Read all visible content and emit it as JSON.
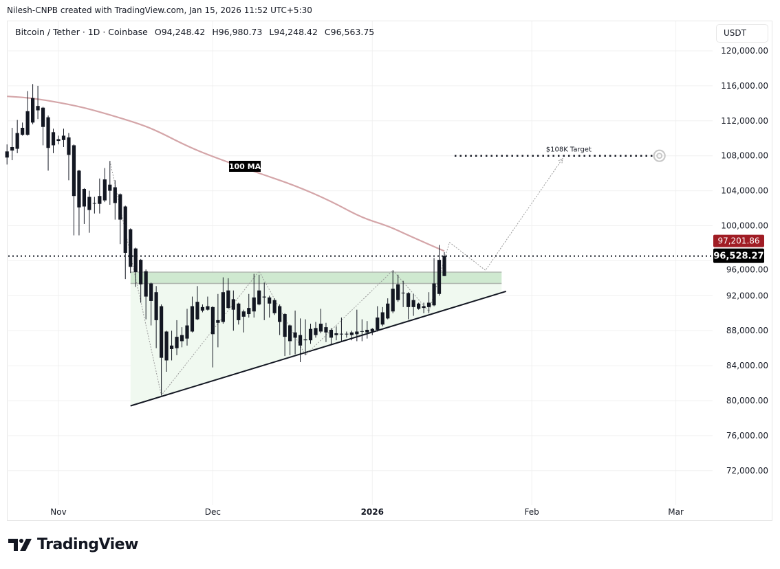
{
  "credit": "Nilesh-CNPB created with TradingView.com, Jan 15, 2026 11:52 UTC+5:30",
  "legend": {
    "symbol": "Bitcoin / Tether · 1D · Coinbase",
    "open": "O94,248.42",
    "high": "H96,980.73",
    "low": "L94,248.42",
    "close": "C96,563.75"
  },
  "currency_button": "USDT",
  "brand": "TradingView",
  "colors": {
    "candle": "#131722",
    "ma": "#d4a5a8",
    "zone": "#cfe9d0",
    "triangle": "#f0f9f0",
    "ma_label_bg": "#a01c24",
    "price_label_bg": "#000000"
  },
  "chart_data": {
    "type": "candlestick",
    "title": "",
    "price_ticks": [
      "120,000.00",
      "116,000.00",
      "112,000.00",
      "108,000.00",
      "104,000.00",
      "100,000.00",
      "96,000.00",
      "92,000.00",
      "88,000.00",
      "84,000.00",
      "80,000.00",
      "76,000.00",
      "72,000.00"
    ],
    "price_tick_values": [
      120000,
      116000,
      112000,
      108000,
      104000,
      100000,
      96000,
      92000,
      88000,
      84000,
      80000,
      76000,
      72000
    ],
    "time_ticks": [
      {
        "label": "Nov",
        "date": "2025-11-01",
        "bold": false
      },
      {
        "label": "Dec",
        "date": "2025-12-01",
        "bold": false
      },
      {
        "label": "2026",
        "date": "2026-01-01",
        "bold": true
      },
      {
        "label": "Feb",
        "date": "2026-02-01",
        "bold": false
      },
      {
        "label": "Mar",
        "date": "2026-03-01",
        "bold": false
      }
    ],
    "ylim": [
      68000,
      123000
    ],
    "grid": true,
    "candles_ohlc": [
      [
        "2025-10-22",
        108500,
        109300,
        107000,
        107800
      ],
      [
        "2025-10-23",
        108600,
        111200,
        107500,
        109000
      ],
      [
        "2025-10-24",
        108800,
        112100,
        108300,
        110600
      ],
      [
        "2025-10-25",
        110400,
        111800,
        110300,
        111200
      ],
      [
        "2025-10-26",
        110400,
        115400,
        110300,
        113100
      ],
      [
        "2025-10-27",
        111800,
        116200,
        111600,
        114600
      ],
      [
        "2025-10-28",
        113700,
        116000,
        112200,
        113200
      ],
      [
        "2025-10-29",
        113500,
        113600,
        109200,
        111300
      ],
      [
        "2025-10-30",
        112400,
        112600,
        106300,
        108900
      ],
      [
        "2025-10-31",
        109200,
        111100,
        108300,
        110700
      ],
      [
        "2025-11-01",
        109900,
        110300,
        109300,
        109700
      ],
      [
        "2025-11-02",
        109800,
        111100,
        109000,
        110300
      ],
      [
        "2025-11-03",
        110100,
        110600,
        105200,
        108100
      ],
      [
        "2025-11-04",
        109200,
        109300,
        98900,
        103400
      ],
      [
        "2025-11-05",
        102100,
        106400,
        98900,
        106300
      ],
      [
        "2025-11-06",
        104200,
        104300,
        100200,
        102200
      ],
      [
        "2025-11-07",
        101800,
        104000,
        99200,
        103300
      ],
      [
        "2025-11-08",
        102600,
        103300,
        101400,
        102600
      ],
      [
        "2025-11-09",
        102500,
        105400,
        101400,
        103400
      ],
      [
        "2025-11-10",
        102900,
        106600,
        102700,
        105300
      ],
      [
        "2025-11-11",
        104700,
        107400,
        102400,
        104000
      ],
      [
        "2025-11-12",
        104400,
        105200,
        100700,
        102600
      ],
      [
        "2025-11-13",
        103600,
        103700,
        97900,
        100700
      ],
      [
        "2025-11-14",
        102200,
        102300,
        93900,
        96900
      ],
      [
        "2025-11-15",
        99600,
        99700,
        94600,
        95300
      ],
      [
        "2025-11-16",
        97400,
        97500,
        93000,
        94700
      ],
      [
        "2025-11-17",
        96100,
        96200,
        91200,
        93300
      ],
      [
        "2025-11-18",
        94800,
        95000,
        89300,
        91900
      ],
      [
        "2025-11-19",
        93400,
        93500,
        88600,
        91400
      ],
      [
        "2025-11-20",
        92400,
        93100,
        86000,
        89200
      ],
      [
        "2025-11-21",
        90800,
        91000,
        80600,
        84900
      ],
      [
        "2025-11-22",
        84600,
        88000,
        83300,
        87900
      ],
      [
        "2025-11-23",
        86300,
        88000,
        84600,
        85900
      ],
      [
        "2025-11-24",
        86000,
        89200,
        85200,
        87300
      ],
      [
        "2025-11-25",
        86800,
        88400,
        86100,
        87500
      ],
      [
        "2025-11-26",
        87100,
        90500,
        86300,
        88600
      ],
      [
        "2025-11-27",
        87900,
        91900,
        87800,
        90800
      ],
      [
        "2025-11-28",
        91300,
        93100,
        89200,
        89300
      ],
      [
        "2025-11-29",
        90300,
        91000,
        90100,
        90700
      ],
      [
        "2025-11-30",
        90400,
        91900,
        90300,
        90800
      ],
      [
        "2025-12-01",
        90700,
        90800,
        83800,
        87600
      ],
      [
        "2025-12-02",
        88900,
        92200,
        86100,
        89200
      ],
      [
        "2025-12-03",
        89000,
        94100,
        88800,
        92400
      ],
      [
        "2025-12-04",
        92600,
        94000,
        90500,
        90600
      ],
      [
        "2025-12-05",
        90400,
        92600,
        88000,
        91600
      ],
      [
        "2025-12-06",
        91100,
        91200,
        88700,
        89200
      ],
      [
        "2025-12-07",
        89600,
        90400,
        87800,
        90200
      ],
      [
        "2025-12-08",
        89900,
        92200,
        89500,
        90600
      ],
      [
        "2025-12-09",
        90200,
        94500,
        89500,
        91800
      ],
      [
        "2025-12-10",
        91000,
        94400,
        90900,
        92600
      ],
      [
        "2025-12-11",
        91900,
        93500,
        89200,
        91800
      ],
      [
        "2025-12-12",
        91800,
        92000,
        89500,
        91100
      ],
      [
        "2025-12-13",
        91500,
        91700,
        89800,
        90000
      ],
      [
        "2025-12-14",
        90800,
        91000,
        87500,
        89000
      ],
      [
        "2025-12-15",
        89900,
        90000,
        85100,
        87300
      ],
      [
        "2025-12-16",
        88600,
        88700,
        85200,
        86800
      ],
      [
        "2025-12-17",
        87200,
        90300,
        85300,
        87800
      ],
      [
        "2025-12-18",
        87500,
        89400,
        84400,
        86300
      ],
      [
        "2025-12-19",
        86900,
        89300,
        85200,
        87000
      ],
      [
        "2025-12-20",
        86900,
        88800,
        86500,
        88200
      ],
      [
        "2025-12-21",
        87500,
        89000,
        87200,
        88300
      ],
      [
        "2025-12-22",
        87900,
        90500,
        87700,
        88800
      ],
      [
        "2025-12-23",
        88400,
        88900,
        86700,
        87800
      ],
      [
        "2025-12-24",
        88100,
        88300,
        86400,
        87200
      ],
      [
        "2025-12-25",
        87500,
        88500,
        86900,
        87700
      ],
      [
        "2025-12-26",
        87650,
        89500,
        86700,
        87600
      ],
      [
        "2025-12-27",
        87650,
        87900,
        87200,
        87600
      ],
      [
        "2025-12-28",
        87500,
        88000,
        86900,
        87800
      ],
      [
        "2025-12-29",
        87600,
        90400,
        86800,
        87900
      ],
      [
        "2025-12-30",
        87950,
        89300,
        86800,
        87900
      ],
      [
        "2025-12-31",
        87800,
        89100,
        87100,
        88100
      ],
      [
        "2026-01-01",
        87900,
        88300,
        87500,
        88200
      ],
      [
        "2026-01-02",
        88100,
        90800,
        87900,
        89500
      ],
      [
        "2026-01-03",
        88700,
        90700,
        88500,
        90100
      ],
      [
        "2026-01-04",
        89400,
        91700,
        89300,
        91100
      ],
      [
        "2026-01-05",
        90200,
        94900,
        90000,
        92800
      ],
      [
        "2026-01-06",
        91500,
        94400,
        91300,
        93300
      ],
      [
        "2026-01-07",
        92350,
        93700,
        90700,
        92300
      ],
      [
        "2026-01-08",
        92300,
        92400,
        89300,
        90700
      ],
      [
        "2026-01-09",
        90700,
        92200,
        89700,
        91500
      ],
      [
        "2026-01-10",
        91100,
        91200,
        90400,
        90500
      ],
      [
        "2026-01-11",
        90600,
        91200,
        90000,
        90800
      ],
      [
        "2026-01-12",
        90700,
        92400,
        90000,
        91200
      ],
      [
        "2026-01-13",
        90900,
        96300,
        90800,
        93400
      ],
      [
        "2026-01-14",
        92200,
        97800,
        92000,
        96100
      ],
      [
        "2026-01-15",
        94248.42,
        96980.73,
        94248.42,
        96563.75
      ]
    ],
    "moving_average": {
      "label": "100 MA",
      "current_value": "97,201.86",
      "points": [
        [
          "2025-10-22",
          114800
        ],
        [
          "2025-10-27",
          114600
        ],
        [
          "2025-11-03",
          113900
        ],
        [
          "2025-11-08",
          113200
        ],
        [
          "2025-11-16",
          111800
        ],
        [
          "2025-11-20",
          110900
        ],
        [
          "2025-11-26",
          109100
        ],
        [
          "2025-12-01",
          107900
        ],
        [
          "2025-12-10",
          106000
        ],
        [
          "2025-12-17",
          104600
        ],
        [
          "2025-12-24",
          102800
        ],
        [
          "2025-12-30",
          100900
        ],
        [
          "2026-01-04",
          100000
        ],
        [
          "2026-01-08",
          98900
        ],
        [
          "2026-01-15",
          97100
        ]
      ]
    },
    "last_price": {
      "value": 96528.27,
      "label": "96,528.27"
    },
    "resistance_zone": {
      "from_date": "2025-11-15",
      "to_date": "2026-01-26",
      "top": 94700,
      "bottom": 93400
    },
    "ascending_trendline": {
      "start": [
        "2025-11-15",
        79400
      ],
      "end": [
        "2026-01-27",
        92500
      ]
    },
    "projection_path": [
      [
        "2025-11-11",
        107400
      ],
      [
        "2025-11-21",
        80600
      ],
      [
        "2025-12-10",
        94800
      ],
      [
        "2025-12-19",
        85200
      ],
      [
        "2026-01-05",
        94900
      ],
      [
        "2026-01-12",
        90200
      ],
      [
        "2026-01-16",
        98100
      ],
      [
        "2026-01-23",
        94900
      ],
      [
        "2026-02-07",
        107700
      ]
    ],
    "target": {
      "label": "$108K Target",
      "price": 108000,
      "from_date": "2026-01-17",
      "to_date": "2026-02-25"
    }
  }
}
